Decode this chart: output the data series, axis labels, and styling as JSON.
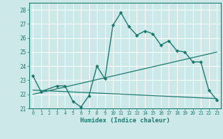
{
  "xlabel": "Humidex (Indice chaleur)",
  "xlim": [
    -0.5,
    23.5
  ],
  "ylim": [
    21.0,
    28.5
  ],
  "yticks": [
    21,
    22,
    23,
    24,
    25,
    26,
    27,
    28
  ],
  "xticks": [
    0,
    1,
    2,
    3,
    4,
    5,
    6,
    7,
    8,
    9,
    10,
    11,
    12,
    13,
    14,
    15,
    16,
    17,
    18,
    19,
    20,
    21,
    22,
    23
  ],
  "xtick_labels": [
    "0",
    "1",
    "2",
    "3",
    "4",
    "5",
    "6",
    "7",
    "8",
    "9",
    "10",
    "11",
    "12",
    "13",
    "14",
    "15",
    "16",
    "17",
    "18",
    "19",
    "20",
    "21",
    "22",
    "23"
  ],
  "bg_color": "#cce8e8",
  "grid_color": "#ffffff",
  "line_color": "#1a7a6e",
  "main_line": {
    "x": [
      0,
      1,
      3,
      4,
      5,
      6,
      7,
      8,
      9,
      10,
      11,
      12,
      13,
      14,
      15,
      16,
      17,
      18,
      19,
      20,
      21,
      22,
      23
    ],
    "y": [
      23.3,
      22.2,
      22.6,
      22.6,
      21.5,
      21.1,
      21.9,
      24.0,
      23.1,
      26.9,
      27.8,
      26.8,
      26.2,
      26.5,
      26.3,
      25.5,
      25.8,
      25.1,
      25.0,
      24.3,
      24.3,
      22.3,
      21.6
    ]
  },
  "trend_up": {
    "x": [
      0,
      23
    ],
    "y": [
      22.0,
      25.0
    ]
  },
  "trend_flat": {
    "x": [
      0,
      23
    ],
    "y": [
      22.3,
      21.7
    ]
  }
}
